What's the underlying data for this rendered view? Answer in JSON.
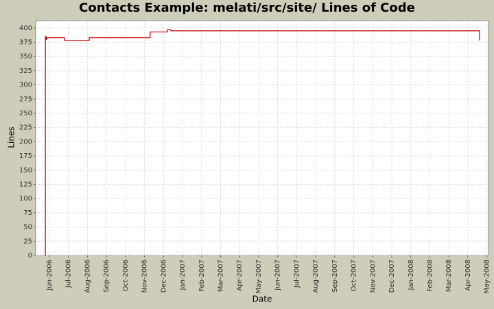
{
  "chart_data": {
    "type": "step-line",
    "title": "Contacts Example: melati/src/site/ Lines of Code",
    "x_label": "Date",
    "y_label": "Lines",
    "x": [
      2006.398,
      2006.399,
      2006.402,
      2006.405,
      2006.483,
      2006.591,
      2006.858,
      2006.934,
      2006.949,
      2008.301
    ],
    "series": [
      {
        "name": "Lines",
        "color": "#c00000",
        "values": [
          0,
          385,
          380,
          383,
          378,
          383,
          393,
          397,
          395,
          378
        ]
      }
    ],
    "xlim": [
      2006.3566,
      2008.3404
    ],
    "ylim": [
      0,
      413
    ],
    "xticks": [
      {
        "value": 2006.4167,
        "label": "Jun-2006"
      },
      {
        "value": 2006.5,
        "label": "Jul-2006"
      },
      {
        "value": 2006.5833,
        "label": "Aug-2006"
      },
      {
        "value": 2006.6667,
        "label": "Sep-2006"
      },
      {
        "value": 2006.75,
        "label": "Oct-2006"
      },
      {
        "value": 2006.8333,
        "label": "Nov-2006"
      },
      {
        "value": 2006.9167,
        "label": "Dec-2006"
      },
      {
        "value": 2007.0,
        "label": "Jan-2007"
      },
      {
        "value": 2007.0833,
        "label": "Feb-2007"
      },
      {
        "value": 2007.1667,
        "label": "Mar-2007"
      },
      {
        "value": 2007.25,
        "label": "Apr-2007"
      },
      {
        "value": 2007.3333,
        "label": "May-2007"
      },
      {
        "value": 2007.4167,
        "label": "Jun-2007"
      },
      {
        "value": 2007.5,
        "label": "Jul-2007"
      },
      {
        "value": 2007.5833,
        "label": "Aug-2007"
      },
      {
        "value": 2007.6667,
        "label": "Sep-2007"
      },
      {
        "value": 2007.75,
        "label": "Oct-2007"
      },
      {
        "value": 2007.8333,
        "label": "Nov-2007"
      },
      {
        "value": 2007.9167,
        "label": "Dec-2007"
      },
      {
        "value": 2008.0,
        "label": "Jan-2008"
      },
      {
        "value": 2008.0833,
        "label": "Feb-2008"
      },
      {
        "value": 2008.1667,
        "label": "Mar-2008"
      },
      {
        "value": 2008.25,
        "label": "Apr-2008"
      },
      {
        "value": 2008.3333,
        "label": "May-2008"
      }
    ],
    "yticks": [
      0,
      25,
      50,
      75,
      100,
      125,
      150,
      175,
      200,
      225,
      250,
      275,
      300,
      325,
      350,
      375,
      400
    ],
    "grid": true
  }
}
